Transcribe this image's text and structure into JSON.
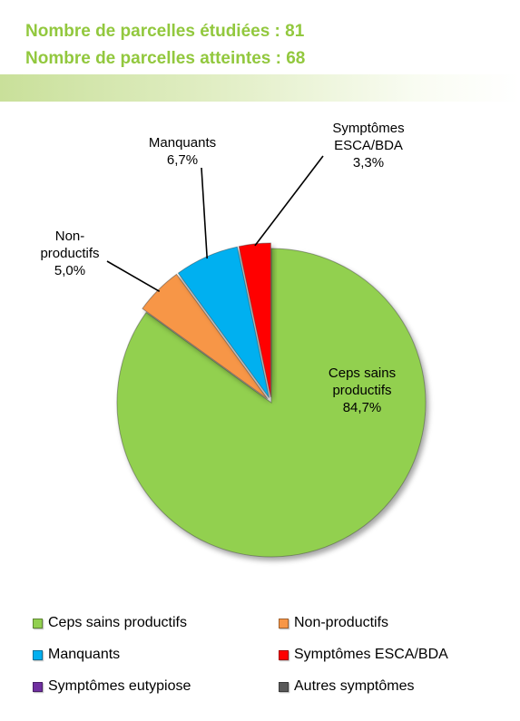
{
  "header": {
    "line1": "Nombre de parcelles étudiées :  81",
    "line2": "Nombre de parcelles atteintes :  68",
    "color": "#92c83e"
  },
  "chart_data": {
    "type": "pie",
    "slices": [
      {
        "label": "Ceps sains productifs",
        "value": 84.7,
        "display": "84,7%",
        "color": "#92d050"
      },
      {
        "label": "Non-productifs",
        "value": 5.0,
        "display": "5,0%",
        "color": "#f79646"
      },
      {
        "label": "Manquants",
        "value": 6.7,
        "display": "6,7%",
        "color": "#00b0f0"
      },
      {
        "label": "Symptômes ESCA/BDA",
        "value": 3.3,
        "display": "3,3%",
        "color": "#ff0000"
      },
      {
        "label": "Symptômes eutypiose",
        "value": 0,
        "display": "",
        "color": "#7030a0"
      },
      {
        "label": "Autres symptômes",
        "value": 0,
        "display": "",
        "color": "#595959"
      }
    ],
    "data_labels": [
      {
        "lines": [
          "Ceps sains",
          "productifs",
          "84,7%"
        ]
      },
      {
        "lines": [
          "Non-",
          "productifs",
          "5,0%"
        ]
      },
      {
        "lines": [
          "Manquants",
          "6,7%"
        ]
      },
      {
        "lines": [
          "Symptômes",
          "ESCA/BDA",
          "3,3%"
        ]
      }
    ],
    "legend": {
      "position": "bottom",
      "items": [
        "Ceps sains productifs",
        "Non-productifs",
        "Manquants",
        "Symptômes ESCA/BDA",
        "Symptômes eutypiose",
        "Autres symptômes"
      ]
    }
  }
}
